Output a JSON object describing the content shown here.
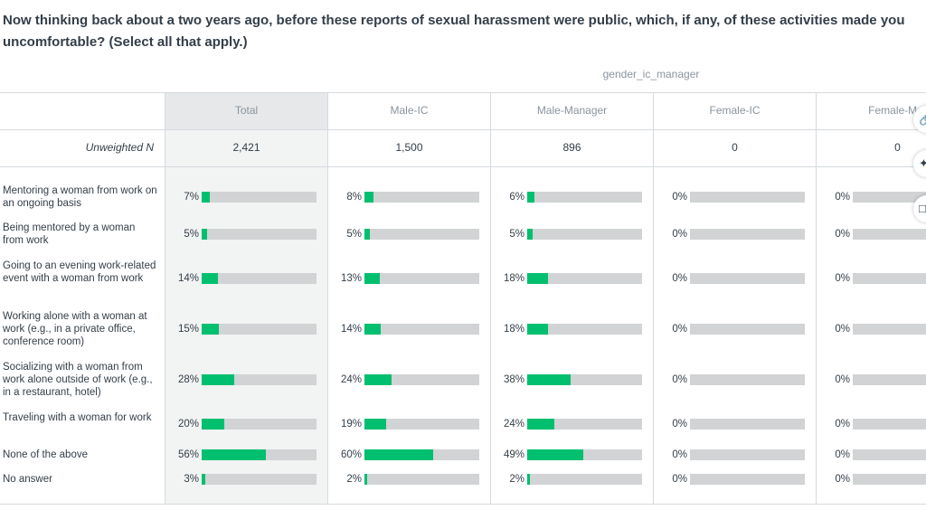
{
  "question": "Now thinking back about a two years ago, before these reports of sexual harassment were public, which, if any, of these activities made you uncomfortable? (Select all that apply.)",
  "group_label": "gender_ic_manager",
  "n_label": "Unweighted N",
  "side_icons": [
    "link-icon",
    "twitter-icon",
    "document-icon"
  ],
  "colors": {
    "bar_fill": "#00bf6f",
    "bar_track": "#d1d3d4"
  },
  "chart_data": {
    "type": "table",
    "columns": [
      "Total",
      "Male-IC",
      "Male-Manager",
      "Female-IC",
      "Female-Mar"
    ],
    "unweighted_n": [
      "2,421",
      "1,500",
      "896",
      "0",
      "0"
    ],
    "rows": [
      {
        "label": "Mentoring a woman from work on an ongoing basis",
        "values": [
          7,
          8,
          6,
          0,
          0
        ]
      },
      {
        "label": "Being mentored by a woman from work",
        "values": [
          5,
          5,
          5,
          0,
          0
        ]
      },
      {
        "label": "Going to an evening work-related event with a woman from work",
        "values": [
          14,
          13,
          18,
          0,
          0
        ]
      },
      {
        "label": "Working alone with a woman at work (e.g., in a private office, conference room)",
        "values": [
          15,
          14,
          18,
          0,
          0
        ]
      },
      {
        "label": "Socializing with a woman from work alone outside of work (e.g., in a restaurant, hotel)",
        "values": [
          28,
          24,
          38,
          0,
          0
        ]
      },
      {
        "label": "Traveling with a woman for work",
        "values": [
          20,
          19,
          24,
          0,
          0
        ]
      },
      {
        "label": "None of the above",
        "values": [
          56,
          60,
          49,
          0,
          0
        ]
      },
      {
        "label": "No answer",
        "values": [
          3,
          2,
          2,
          0,
          0
        ]
      }
    ]
  }
}
